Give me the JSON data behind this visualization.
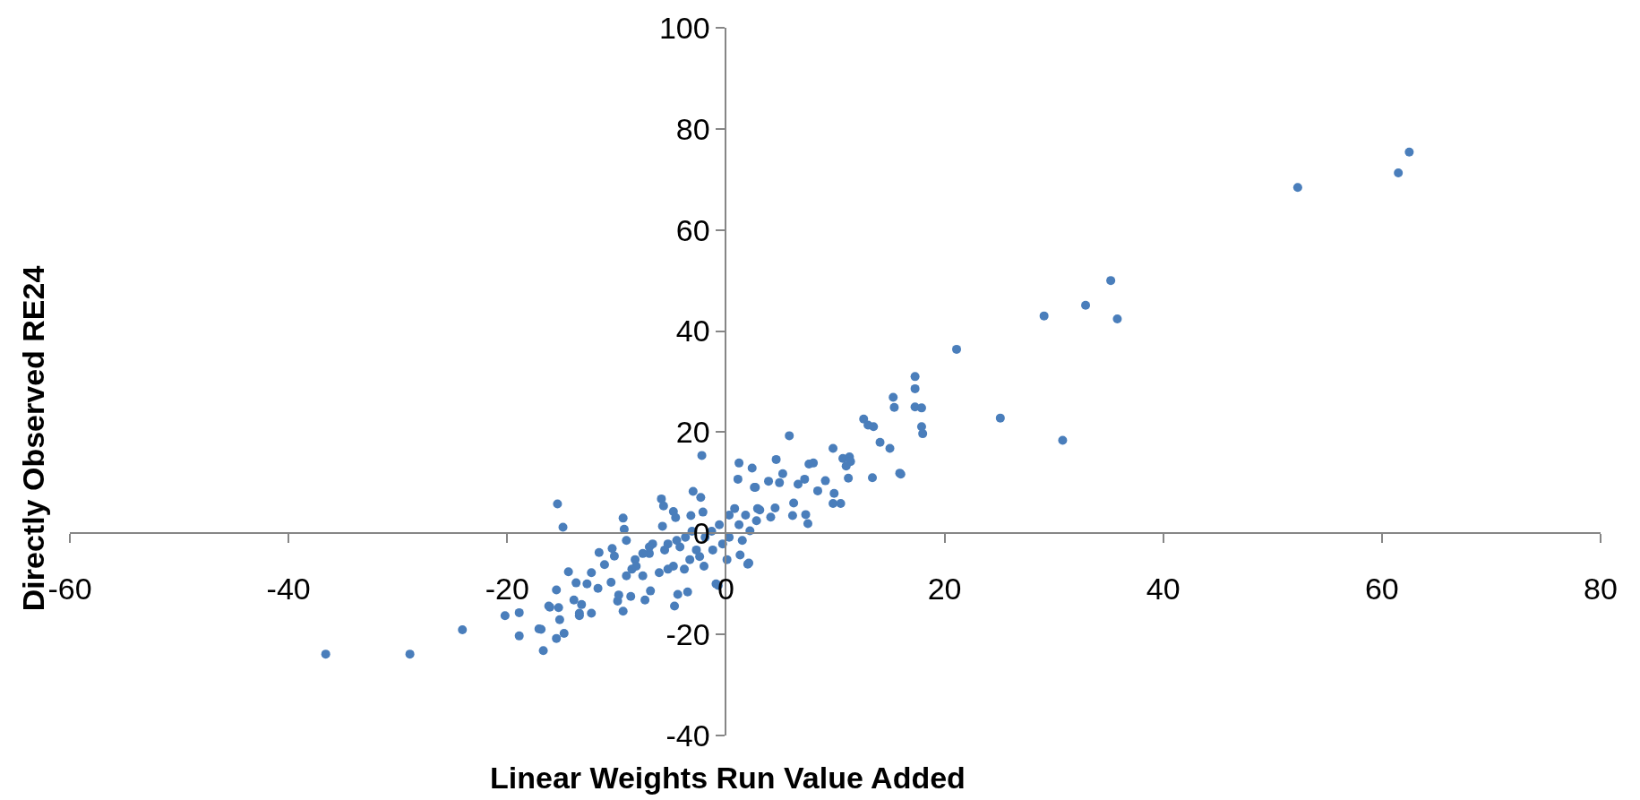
{
  "chart_data": {
    "type": "scatter",
    "xlabel": "Linear Weights Run Value Added",
    "ylabel": "Directly Observed RE24",
    "xlim": [
      -60,
      80
    ],
    "xticks": [
      -60,
      -40,
      -20,
      0,
      20,
      40,
      60,
      80
    ],
    "ylim": [
      -40,
      100
    ],
    "yticks": [
      -40,
      -20,
      0,
      20,
      40,
      60,
      80,
      100
    ],
    "grid": false,
    "marker": "circle",
    "series": [
      {
        "color": "#4a7ebb",
        "x": [
          62.5,
          61.5,
          52.3,
          35.2,
          32.9,
          29.1,
          35.8,
          21.1,
          25.1,
          30.8,
          17.3,
          17.3,
          15.3,
          15.4,
          17.3,
          17.9,
          17.9,
          18.0,
          12.6,
          13.0,
          13.5,
          14.1,
          15.0,
          15.9,
          13.4,
          10.7,
          11.3,
          11.4,
          11.0,
          11.2,
          9.8,
          7.6,
          8.0,
          9.1,
          7.2,
          6.6,
          8.4,
          9.9,
          9.8,
          10.5,
          6.2,
          7.3,
          7.5,
          5.8,
          6.1,
          16.0,
          -2.2,
          -15.4,
          -14.9,
          1.2,
          1.1,
          2.4,
          4.6,
          5.2,
          4.9,
          2.7,
          -3.0,
          -2.3,
          -2.1,
          -5.9,
          -5.7,
          -4.8,
          -4.6,
          -3.2,
          -9.4,
          -9.3,
          -9.1,
          -5.8,
          -10.4,
          -11.6,
          -10.2,
          -11.1,
          -8.3,
          -8.6,
          -6.7,
          -7.0,
          -5.3,
          -4.8,
          -3.8,
          -2.0,
          -1.2,
          -0.3,
          0.3,
          1.2,
          1.8,
          2.9,
          1.5,
          1.3,
          2.0,
          0.1,
          -0.9,
          -3.5,
          -4.4,
          -4.7,
          -6.9,
          -7.4,
          -8.7,
          -9.4,
          -9.9,
          -9.8,
          -10.5,
          -11.7,
          -12.3,
          -13.4,
          -13.2,
          -13.9,
          -12.7,
          -13.7,
          -14.4,
          -12.3,
          -15.5,
          -15.3,
          -16.1,
          -15.2,
          -14.8,
          -16.9,
          -18.9,
          -20.2,
          -18.9,
          -24.1,
          -7.0,
          -5.6,
          -4.2,
          -2.7,
          -1.9,
          -1.3,
          -3.7,
          -3.1,
          -4.5,
          -2.4,
          -3.3,
          -0.6,
          0.3,
          0.8,
          -7.6,
          -8.2,
          -7.6,
          -9.1,
          -6.1,
          -5.3,
          -36.6,
          -28.9,
          -17.1,
          -16.7,
          -16.2,
          -15.5,
          -13.4,
          -0.7,
          2.1,
          2.6,
          3.9,
          4.5,
          4.1,
          2.8,
          2.2,
          3.1
        ],
        "values": [
          75.4,
          71.3,
          68.4,
          50.0,
          45.1,
          43.0,
          42.4,
          36.4,
          22.8,
          18.4,
          31.0,
          28.6,
          26.9,
          24.9,
          25.0,
          24.8,
          21.1,
          19.7,
          22.6,
          21.4,
          21.1,
          18.0,
          16.8,
          11.9,
          11.0,
          14.8,
          15.1,
          14.2,
          13.3,
          10.9,
          16.8,
          13.7,
          13.9,
          10.4,
          10.7,
          9.7,
          8.4,
          7.9,
          5.9,
          5.9,
          6.0,
          3.7,
          1.9,
          19.3,
          3.5,
          11.7,
          15.4,
          5.8,
          1.2,
          13.9,
          10.7,
          12.9,
          14.6,
          11.8,
          10.0,
          9.1,
          8.3,
          7.1,
          4.2,
          6.8,
          5.4,
          4.3,
          3.1,
          3.5,
          3.0,
          0.8,
          -1.4,
          1.4,
          -3.0,
          -3.8,
          -4.5,
          -6.2,
          -5.2,
          -7.1,
          -2.1,
          -4.0,
          -2.1,
          -6.5,
          -7.1,
          -6.5,
          -3.3,
          -2.1,
          -0.8,
          1.7,
          3.6,
          4.9,
          -1.4,
          -4.3,
          -6.1,
          -5.2,
          -10.0,
          -11.6,
          -12.1,
          -14.4,
          -11.4,
          -13.2,
          -12.5,
          -15.4,
          -13.4,
          -12.2,
          -9.7,
          -10.9,
          -15.8,
          -16.3,
          -14.1,
          -13.2,
          -10.0,
          -9.8,
          -7.6,
          -7.8,
          -11.2,
          -14.7,
          -14.6,
          -17.1,
          -19.8,
          -19.0,
          -15.7,
          -16.3,
          -20.3,
          -19.1,
          -2.7,
          -3.3,
          -2.7,
          -3.3,
          -0.8,
          0.4,
          -0.8,
          0.4,
          -1.4,
          -4.6,
          -5.2,
          1.7,
          3.6,
          4.9,
          -4.0,
          -6.5,
          -8.4,
          -8.4,
          -7.8,
          -7.1,
          -23.9,
          -23.9,
          -18.9,
          -23.2,
          -14.4,
          -20.8,
          -15.8,
          -10.3,
          -5.9,
          9.1,
          10.3,
          5.0,
          3.2,
          2.5,
          0.5,
          4.6
        ]
      }
    ]
  }
}
